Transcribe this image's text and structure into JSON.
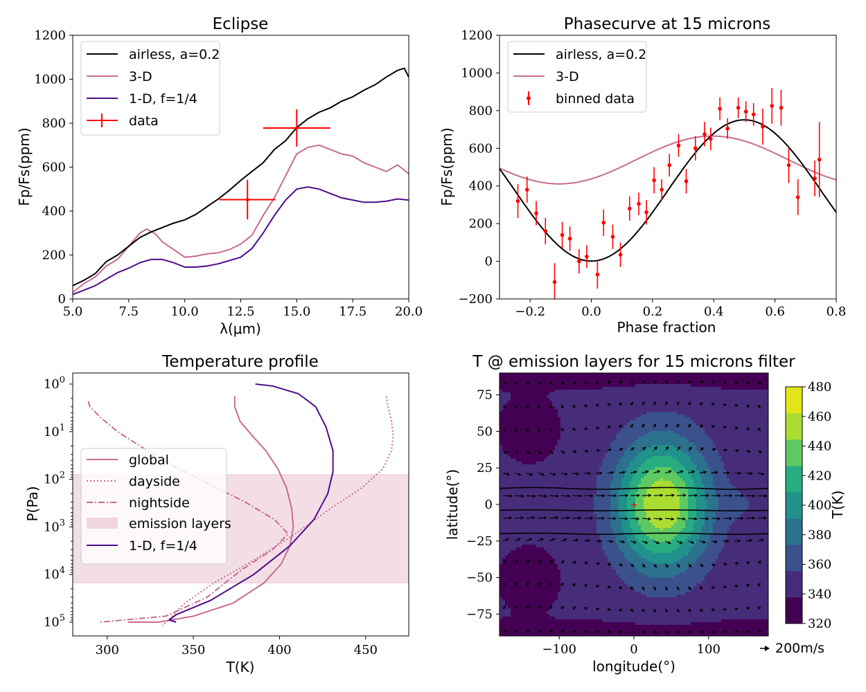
{
  "chart_data": [
    {
      "id": "eclipse",
      "type": "line",
      "title": "Eclipse",
      "xlabel": "λ(μm)",
      "ylabel": "Fp/Fs(ppm)",
      "xlim": [
        5,
        20
      ],
      "ylim": [
        0,
        1200
      ],
      "xticks": [
        "5.0",
        "7.5",
        "10.0",
        "12.5",
        "15.0",
        "17.5",
        "20.0"
      ],
      "yticks": [
        "0",
        "200",
        "400",
        "600",
        "800",
        "1000",
        "1200"
      ],
      "legend_position": "upper-left",
      "series": [
        {
          "name": "airless, a=0.2",
          "color": "#000000",
          "x": [
            5,
            5.5,
            6,
            6.5,
            7,
            7.5,
            8,
            8.5,
            9,
            9.5,
            10,
            10.5,
            11,
            11.5,
            12,
            12.5,
            13,
            13.5,
            14,
            14.5,
            15,
            15.5,
            16,
            16.5,
            17,
            17.5,
            18,
            18.5,
            19,
            19.5,
            19.8,
            20
          ],
          "y": [
            60,
            85,
            115,
            170,
            200,
            240,
            280,
            305,
            325,
            345,
            360,
            385,
            420,
            455,
            495,
            540,
            580,
            620,
            680,
            720,
            780,
            820,
            850,
            870,
            900,
            920,
            950,
            975,
            1010,
            1040,
            1050,
            1010
          ]
        },
        {
          "name": "3-D",
          "color": "#c76a8f",
          "x": [
            5,
            5.5,
            6,
            6.5,
            7,
            7.5,
            8,
            8.3,
            8.7,
            9,
            9.5,
            10,
            10.5,
            11,
            11.5,
            12,
            12.5,
            13,
            13.5,
            14,
            14.5,
            15,
            15.5,
            16,
            16.5,
            17,
            17.5,
            18,
            18.5,
            19,
            19.5,
            20
          ],
          "y": [
            30,
            70,
            100,
            150,
            180,
            240,
            300,
            318,
            295,
            260,
            225,
            190,
            195,
            205,
            210,
            225,
            250,
            290,
            380,
            460,
            560,
            660,
            690,
            700,
            680,
            660,
            650,
            620,
            600,
            580,
            610,
            570
          ]
        },
        {
          "name": "1-D, f=1/4",
          "color": "#4b0c8a",
          "x": [
            5,
            5.5,
            6,
            6.5,
            7,
            7.5,
            8,
            8.5,
            9,
            9.5,
            10,
            10.5,
            11,
            11.5,
            12,
            12.5,
            13,
            13.5,
            14,
            14.5,
            15,
            15.5,
            16,
            16.5,
            17,
            17.5,
            18,
            18.5,
            19,
            19.5,
            20
          ],
          "y": [
            20,
            40,
            60,
            90,
            120,
            140,
            165,
            180,
            180,
            165,
            145,
            145,
            150,
            160,
            175,
            190,
            230,
            300,
            380,
            450,
            500,
            510,
            500,
            480,
            460,
            450,
            440,
            440,
            445,
            455,
            450
          ]
        }
      ],
      "data_points": {
        "name": "data",
        "color": "#ff0000",
        "points": [
          {
            "x": 12.8,
            "y": 452,
            "xerr": 1.25,
            "yerr": 90
          },
          {
            "x": 15.0,
            "y": 778,
            "xerr": 1.5,
            "yerr": 85
          }
        ]
      }
    },
    {
      "id": "phasecurve",
      "type": "line",
      "title": "Phasecurve at 15 microns",
      "xlabel": "Phase fraction",
      "ylabel": "Fp/Fs(ppm)",
      "xlim": [
        -0.3,
        0.8
      ],
      "ylim": [
        -200,
        1200
      ],
      "xticks": [
        "−0.2",
        "0.0",
        "0.2",
        "0.4",
        "0.6",
        "0.8"
      ],
      "yticks": [
        "−200",
        "0",
        "200",
        "400",
        "600",
        "800",
        "1000",
        "1200"
      ],
      "legend_position": "upper-left",
      "series": [
        {
          "name": "airless, a=0.2",
          "color": "#000000",
          "model": {
            "mean": 376,
            "amplitude": 375,
            "phase_of_peak": 0.5
          }
        },
        {
          "name": "3-D",
          "color": "#c76a8f",
          "model": {
            "mean": 538,
            "amplitude": 127,
            "phase_of_peak": 0.395
          }
        }
      ],
      "data_points": {
        "name": "binned data",
        "color": "#ff0000",
        "points": [
          {
            "x": -0.24,
            "y": 320,
            "yerr": 90
          },
          {
            "x": -0.21,
            "y": 380,
            "yerr": 70
          },
          {
            "x": -0.18,
            "y": 255,
            "yerr": 65
          },
          {
            "x": -0.15,
            "y": 160,
            "yerr": 70
          },
          {
            "x": -0.12,
            "y": -110,
            "yerr": 100
          },
          {
            "x": -0.095,
            "y": 140,
            "yerr": 70
          },
          {
            "x": -0.07,
            "y": 120,
            "yerr": 65
          },
          {
            "x": -0.04,
            "y": 0,
            "yerr": 65
          },
          {
            "x": -0.015,
            "y": 25,
            "yerr": 60
          },
          {
            "x": 0.02,
            "y": -70,
            "yerr": 75
          },
          {
            "x": 0.04,
            "y": 205,
            "yerr": 70
          },
          {
            "x": 0.07,
            "y": 130,
            "yerr": 65
          },
          {
            "x": 0.095,
            "y": 35,
            "yerr": 65
          },
          {
            "x": 0.125,
            "y": 280,
            "yerr": 65
          },
          {
            "x": 0.155,
            "y": 305,
            "yerr": 60
          },
          {
            "x": 0.18,
            "y": 260,
            "yerr": 65
          },
          {
            "x": 0.205,
            "y": 430,
            "yerr": 70
          },
          {
            "x": 0.23,
            "y": 380,
            "yerr": 55
          },
          {
            "x": 0.255,
            "y": 510,
            "yerr": 60
          },
          {
            "x": 0.285,
            "y": 615,
            "yerr": 60
          },
          {
            "x": 0.31,
            "y": 425,
            "yerr": 65
          },
          {
            "x": 0.34,
            "y": 600,
            "yerr": 65
          },
          {
            "x": 0.37,
            "y": 675,
            "yerr": 65
          },
          {
            "x": 0.39,
            "y": 650,
            "yerr": 60
          },
          {
            "x": 0.42,
            "y": 810,
            "yerr": 60
          },
          {
            "x": 0.445,
            "y": 705,
            "yerr": 55
          },
          {
            "x": 0.48,
            "y": 815,
            "yerr": 55
          },
          {
            "x": 0.505,
            "y": 795,
            "yerr": 55
          },
          {
            "x": 0.53,
            "y": 780,
            "yerr": 60
          },
          {
            "x": 0.56,
            "y": 715,
            "yerr": 95
          },
          {
            "x": 0.59,
            "y": 825,
            "yerr": 95
          },
          {
            "x": 0.62,
            "y": 815,
            "yerr": 95
          },
          {
            "x": 0.645,
            "y": 510,
            "yerr": 95
          },
          {
            "x": 0.675,
            "y": 340,
            "yerr": 95
          },
          {
            "x": 0.73,
            "y": 440,
            "yerr": 95
          },
          {
            "x": 0.745,
            "y": 540,
            "yerr": 200
          }
        ]
      }
    },
    {
      "id": "temperature-profile",
      "type": "line",
      "title": "Temperature profile",
      "xlabel": "T(K)",
      "ylabel": "P(Pa)",
      "xlim": [
        280,
        475
      ],
      "ylim_log": [
        200000,
        0.6
      ],
      "y_scale": "log, inverted",
      "xticks": [
        "300",
        "350",
        "400",
        "450"
      ],
      "yticks": [
        "10^0",
        "10^1",
        "10^2",
        "10^3",
        "10^4",
        "10^5"
      ],
      "legend_position": "center-left",
      "emission_layers": {
        "name": "emission layers",
        "color": "#dda0b5",
        "p_range": [
          80,
          15000
        ]
      },
      "series": [
        {
          "name": "global",
          "color": "#c76a8f",
          "dash": "solid",
          "T": [
            374,
            374,
            377,
            384,
            392,
            399,
            404,
            407,
            408,
            406,
            401,
            391,
            373,
            350,
            330,
            312
          ],
          "P": [
            1.8,
            3,
            6,
            12,
            25,
            60,
            150,
            400,
            1000,
            2500,
            6000,
            15000,
            40000,
            75000,
            100000,
            100000
          ]
        },
        {
          "name": "dayside",
          "color": "#c76a8f",
          "dash": "dotted",
          "T": [
            462,
            463,
            465,
            466,
            465,
            460,
            448,
            430,
            408,
            385,
            362,
            345,
            337,
            332
          ],
          "P": [
            1.8,
            3,
            6,
            12,
            25,
            60,
            150,
            400,
            1500,
            5000,
            15000,
            40000,
            80000,
            120000
          ]
        },
        {
          "name": "nightside",
          "color": "#c76a8f",
          "dash": "dashdot",
          "T": [
            289,
            290,
            296,
            306,
            319,
            337,
            358,
            380,
            397,
            405,
            396,
            378,
            358,
            334,
            296
          ],
          "P": [
            2.3,
            3,
            5,
            10,
            20,
            50,
            120,
            300,
            700,
            1400,
            3000,
            8000,
            30000,
            75000,
            100000
          ]
        },
        {
          "name": "1-D, f=1/4",
          "color": "#4b0c8a",
          "dash": "solid",
          "T": [
            386,
            396,
            411,
            421,
            427,
            431,
            431,
            428,
            420,
            406,
            385,
            360,
            340,
            336,
            340
          ],
          "P": [
            1,
            1.1,
            1.6,
            3,
            8,
            25,
            70,
            200,
            700,
            2500,
            10000,
            35000,
            70000,
            90000,
            100000
          ]
        }
      ]
    },
    {
      "id": "temperature-map",
      "type": "heatmap",
      "title": "T @ emission layers for 15 microns filter",
      "xlabel": "longitude(°)",
      "ylabel": "latitude(°)",
      "xlim": [
        -180,
        180
      ],
      "ylim": [
        -90,
        90
      ],
      "xticks": [
        "−100",
        "0",
        "100"
      ],
      "yticks": [
        "−75",
        "−50",
        "−25",
        "0",
        "25",
        "50",
        "75"
      ],
      "colorbar_label": "T(K)",
      "colorbar_ticks": [
        "320",
        "340",
        "360",
        "380",
        "400",
        "420",
        "440",
        "460",
        "480"
      ],
      "levels": [
        320,
        340,
        360,
        380,
        400,
        420,
        440,
        460,
        480
      ],
      "colors": [
        "#440154",
        "#472c7a",
        "#3b518b",
        "#2c718e",
        "#21918c",
        "#27ad81",
        "#5ec962",
        "#aadc32",
        "#e3e419"
      ],
      "hotspot_marker": {
        "longitude": 0,
        "latitude": 0,
        "color": "#ff0000",
        "symbol": "+"
      },
      "wind_scale_label": "200m/s"
    }
  ]
}
